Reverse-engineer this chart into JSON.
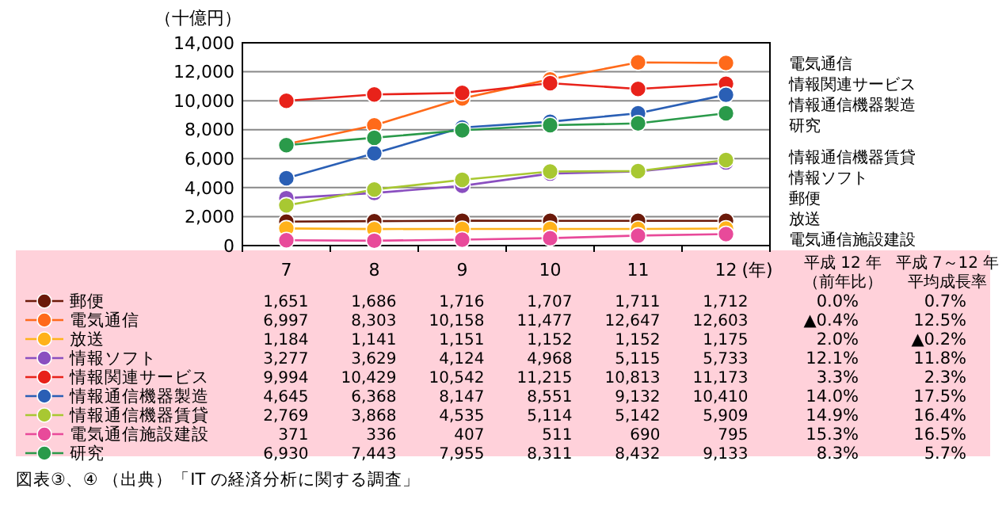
{
  "chart_data": {
    "type": "line",
    "ylabel": "（十億円）",
    "xlabel": "(年)",
    "categories": [
      "7",
      "8",
      "9",
      "10",
      "11",
      "12"
    ],
    "ylim": [
      0,
      14000
    ],
    "yticks": [
      {
        "value": 0,
        "label": "0"
      },
      {
        "value": 2000,
        "label": "2,000"
      },
      {
        "value": 4000,
        "label": "4,000"
      },
      {
        "value": 6000,
        "label": "6,000"
      },
      {
        "value": 8000,
        "label": "8,000"
      },
      {
        "value": 10000,
        "label": "10,000"
      },
      {
        "value": 12000,
        "label": "12,000"
      },
      {
        "value": 14000,
        "label": "14,000"
      }
    ],
    "grid": "y",
    "marker": "circle",
    "line_style": "solid",
    "legend": "bottom",
    "series": [
      {
        "name": "郵便",
        "color": "#6b1a0a",
        "values": [
          1651,
          1686,
          1716,
          1707,
          1711,
          1712
        ],
        "value_labels": [
          "1,651",
          "1,686",
          "1,716",
          "1,707",
          "1,711",
          "1,712"
        ]
      },
      {
        "name": "電気通信",
        "color": "#ff6a1a",
        "values": [
          6997,
          8303,
          10158,
          11477,
          12647,
          12603
        ],
        "value_labels": [
          "6,997",
          "8,303",
          "10,158",
          "11,477",
          "12,647",
          "12,603"
        ]
      },
      {
        "name": "放送",
        "color": "#ffb21a",
        "values": [
          1184,
          1141,
          1151,
          1152,
          1152,
          1175
        ],
        "value_labels": [
          "1,184",
          "1,141",
          "1,151",
          "1,152",
          "1,152",
          "1,175"
        ]
      },
      {
        "name": "情報ソフト",
        "color": "#8a4fc0",
        "values": [
          3277,
          3629,
          4124,
          4968,
          5115,
          5733
        ],
        "value_labels": [
          "3,277",
          "3,629",
          "4,124",
          "4,968",
          "5,115",
          "5,733"
        ]
      },
      {
        "name": "情報関連サービス",
        "color": "#e8221a",
        "values": [
          9994,
          10429,
          10542,
          11215,
          10813,
          11173
        ],
        "value_labels": [
          "9,994",
          "10,429",
          "10,542",
          "11,215",
          "10,813",
          "11,173"
        ]
      },
      {
        "name": "情報通信機器製造",
        "color": "#2a5fb5",
        "values": [
          4645,
          6368,
          8147,
          8551,
          9132,
          10410
        ],
        "value_labels": [
          "4,645",
          "6,368",
          "8,147",
          "8,551",
          "9,132",
          "10,410"
        ]
      },
      {
        "name": "情報通信機器賃貸",
        "color": "#a8c832",
        "values": [
          2769,
          3868,
          4535,
          5114,
          5142,
          5909
        ],
        "value_labels": [
          "2,769",
          "3,868",
          "4,535",
          "5,114",
          "5,142",
          "5,909"
        ]
      },
      {
        "name": "電気通信施設建設",
        "color": "#e84a9a",
        "values": [
          371,
          336,
          407,
          511,
          690,
          795
        ],
        "value_labels": [
          "371",
          "336",
          "407",
          "511",
          "690",
          "795"
        ]
      },
      {
        "name": "研究",
        "color": "#2a9a4a",
        "values": [
          6930,
          7443,
          7955,
          8311,
          8432,
          9133
        ],
        "value_labels": [
          "6,930",
          "7,443",
          "7,955",
          "8,311",
          "8,432",
          "9,133"
        ]
      }
    ],
    "annotations": [
      "平成 12 年",
      "（前年比）",
      "平成 7～12 年",
      "平均成長率",
      "0.0%",
      "0.7%",
      "▲0.4%",
      "12.5%",
      "2.0%",
      "▲0.2%",
      "12.1%",
      "11.8%",
      "3.3%",
      "2.3%",
      "14.0%",
      "17.5%",
      "14.9%",
      "16.4%",
      "15.3%",
      "16.5%",
      "8.3%",
      "5.7%",
      "図表③、④ （出典）「IT の経済分析に関する調査」"
    ]
  }
}
